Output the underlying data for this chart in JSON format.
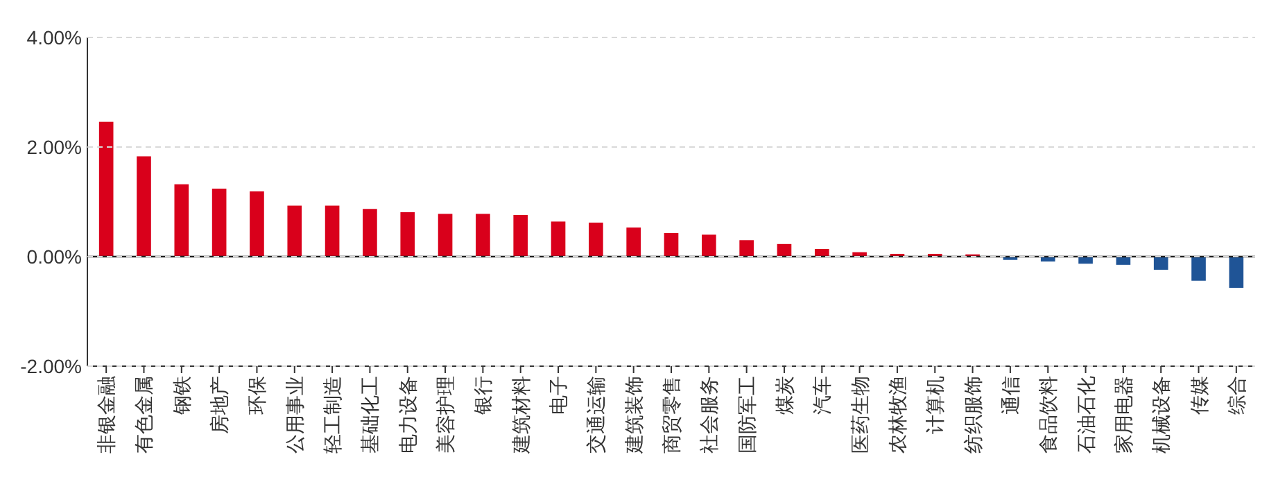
{
  "chart_data": {
    "type": "bar",
    "categories": [
      "非银金融",
      "有色金属",
      "钢铁",
      "房地产",
      "环保",
      "公用事业",
      "轻工制造",
      "基础化工",
      "电力设备",
      "美容护理",
      "银行",
      "建筑材料",
      "电子",
      "交通运输",
      "建筑装饰",
      "商贸零售",
      "社会服务",
      "国防军工",
      "煤炭",
      "汽车",
      "医药生物",
      "农林牧渔",
      "计算机",
      "纺织服饰",
      "通信",
      "食品饮料",
      "石油石化",
      "家用电器",
      "机械设备",
      "传媒",
      "综合"
    ],
    "values": [
      2.46,
      1.83,
      1.32,
      1.24,
      1.19,
      0.93,
      0.93,
      0.87,
      0.81,
      0.78,
      0.78,
      0.76,
      0.64,
      0.62,
      0.53,
      0.43,
      0.4,
      0.3,
      0.23,
      0.14,
      0.08,
      0.05,
      0.05,
      0.04,
      -0.06,
      -0.09,
      -0.13,
      -0.15,
      -0.24,
      -0.44,
      -0.57
    ],
    "colors": [
      "#d9001b",
      "#d9001b",
      "#d9001b",
      "#d9001b",
      "#d9001b",
      "#d9001b",
      "#d9001b",
      "#d9001b",
      "#d9001b",
      "#d9001b",
      "#d9001b",
      "#d9001b",
      "#d9001b",
      "#d9001b",
      "#d9001b",
      "#d9001b",
      "#d9001b",
      "#d9001b",
      "#d9001b",
      "#d9001b",
      "#d9001b",
      "#d9001b",
      "#d9001b",
      "#d9001b",
      "#1f5496",
      "#1f5496",
      "#1f5496",
      "#1f5496",
      "#1f5496",
      "#1f5496",
      "#1f5496"
    ],
    "ylim": [
      -2,
      4
    ],
    "yticks": [
      {
        "value": -2,
        "label": "-2.00%"
      },
      {
        "value": 0,
        "label": "0.00%"
      },
      {
        "value": 2,
        "label": "2.00%"
      },
      {
        "value": 4,
        "label": "4.00%"
      }
    ],
    "grid": "y"
  }
}
